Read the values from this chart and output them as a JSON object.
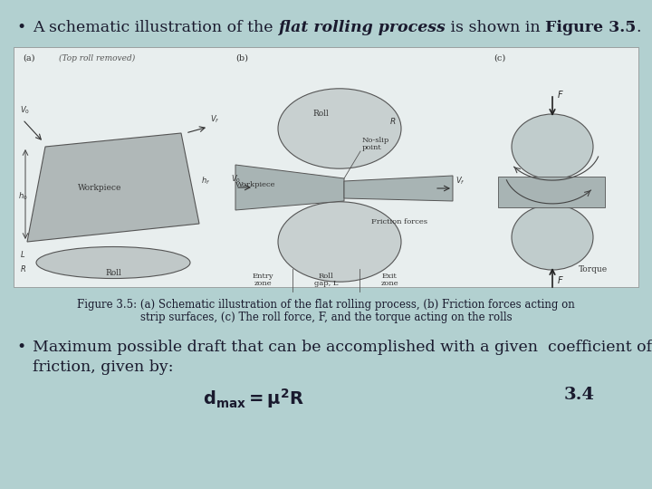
{
  "bg_color": "#b2d0d0",
  "text_color": "#1a1a2e",
  "title_normal_part1": "A schematic illustration of the ",
  "title_bold_part": "flat rolling process",
  "title_normal_part2": " is shown in ",
  "title_bold_part2": "Figure 3.5",
  "title_normal_part3": ".",
  "caption_line1": "Figure 3.5: (a) Schematic illustration of the flat rolling process, (b) Friction forces acting on",
  "caption_line2": "strip surfaces, (c) The roll force, F, and the torque acting on the rolls",
  "bullet2_line1": "Maximum possible draft that can be accomplished with a given  coefficient of",
  "bullet2_line2": "friction, given by:",
  "formula_number": "3.4",
  "font_size_main": 12.5,
  "font_size_caption": 8.5,
  "font_size_formula": 13,
  "img_bg": "#dce8e8",
  "img_border": "#aaaaaa"
}
